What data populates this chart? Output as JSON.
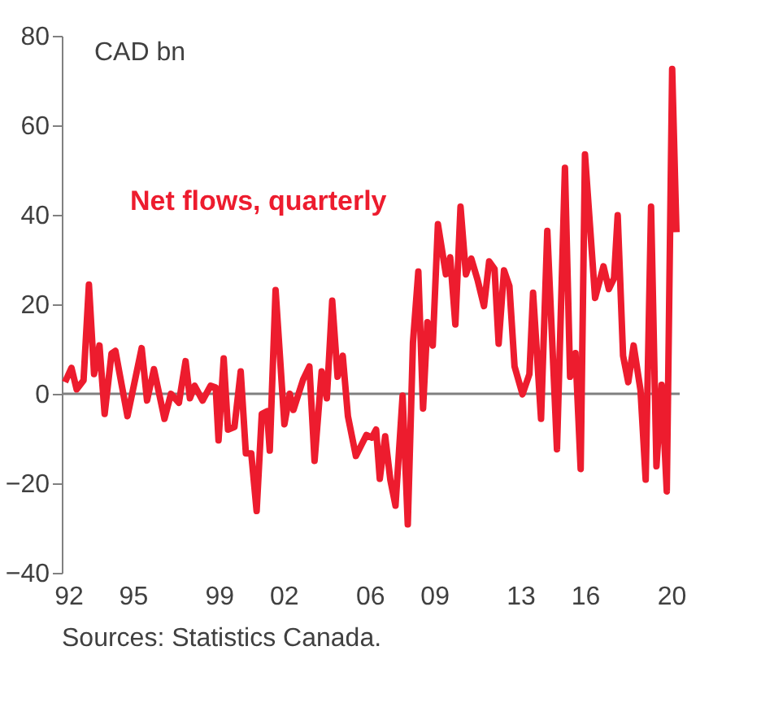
{
  "chart_data": {
    "type": "line",
    "ylabel": "CAD bn",
    "annotations": [
      "Sources: Statistics Canada."
    ],
    "x": [
      1991.85,
      1992.15,
      1992.39,
      1992.71,
      1992.96,
      1993.2,
      1993.45,
      1993.69,
      1994.01,
      1994.19,
      1994.75,
      1995.41,
      1995.66,
      1995.98,
      1996.47,
      1996.77,
      1997.14,
      1997.45,
      1997.65,
      1997.87,
      1998.24,
      1998.61,
      1998.85,
      1998.98,
      1999.22,
      1999.42,
      1999.72,
      2000.01,
      2000.25,
      2000.5,
      2000.75,
      2000.99,
      2001.23,
      2001.36,
      2001.63,
      2002.04,
      2002.29,
      2002.46,
      2002.91,
      2003.2,
      2003.44,
      2003.77,
      2004.01,
      2004.26,
      2004.51,
      2004.75,
      2004.99,
      2005.36,
      2005.61,
      2005.85,
      2006.1,
      2006.3,
      2006.47,
      2006.72,
      2006.96,
      2007.2,
      2007.53,
      2007.77,
      2008.01,
      2008.26,
      2008.48,
      2008.68,
      2008.93,
      2009.17,
      2009.54,
      2009.74,
      2009.98,
      2010.22,
      2010.47,
      2010.72,
      2011.01,
      2011.31,
      2011.55,
      2011.8,
      2011.99,
      2012.24,
      2012.49,
      2012.73,
      2013.1,
      2013.42,
      2013.59,
      2013.96,
      2014.25,
      2014.7,
      2015.07,
      2015.31,
      2015.56,
      2015.8,
      2016.0,
      2016.47,
      2016.86,
      2017.11,
      2017.35,
      2017.52,
      2017.77,
      2018.01,
      2018.26,
      2018.58,
      2018.82,
      2019.07,
      2019.32,
      2019.56,
      2019.8,
      2020.05,
      2020.25
    ],
    "series": [
      {
        "name": "Net flows, quarterly",
        "color": "#ed1c2e",
        "values": [
          2.6,
          5.8,
          1,
          3,
          24.4,
          4.4,
          10.8,
          -4.5,
          9,
          9.6,
          -5,
          10.2,
          -1.5,
          5.5,
          -5.6,
          0,
          -2,
          7.3,
          -1,
          1.8,
          -1.5,
          1.8,
          1.4,
          -10.4,
          7.9,
          -8,
          -7.4,
          5,
          -13.3,
          -13.3,
          -26.2,
          -4.5,
          -3.9,
          -12.7,
          23.2,
          -6.8,
          0,
          -3.6,
          3.2,
          6.1,
          -15,
          5,
          -1,
          20.8,
          3.8,
          8.5,
          -5,
          -13.9,
          -11.5,
          -9.2,
          -9.8,
          -8,
          -19,
          -9.5,
          -19.2,
          -25,
          -0.4,
          -29.2,
          11.4,
          27.3,
          -3.3,
          16,
          10.8,
          37.9,
          26.7,
          30.5,
          15.5,
          41.8,
          26.7,
          30.2,
          25.5,
          19.6,
          29.6,
          27.9,
          11.2,
          27.6,
          24.1,
          6.1,
          -0.1,
          4.4,
          22.6,
          -5.6,
          36.4,
          -12.4,
          50.5,
          3.8,
          9.1,
          -16.8,
          53.5,
          21.4,
          28.5,
          23.4,
          25.8,
          39.9,
          8.5,
          2.6,
          10.8,
          0.8,
          -19.2,
          41.8,
          -16.2,
          2,
          -21.8,
          72.6,
          36.1
        ]
      }
    ],
    "xlim": [
      1991.7,
      2020.4
    ],
    "xticks": [
      {
        "value": 1992,
        "label": "92"
      },
      {
        "value": 1995,
        "label": "95"
      },
      {
        "value": 1999,
        "label": "99"
      },
      {
        "value": 2002,
        "label": "02"
      },
      {
        "value": 2006,
        "label": "06"
      },
      {
        "value": 2009,
        "label": "09"
      },
      {
        "value": 2013,
        "label": "13"
      },
      {
        "value": 2016,
        "label": "16"
      },
      {
        "value": 2020,
        "label": "20"
      }
    ],
    "ylim": [
      -40,
      80
    ],
    "yticks": [
      -40,
      -20,
      0,
      20,
      40,
      60,
      80
    ],
    "ref_lines": [
      {
        "axis": "y",
        "value": 0,
        "color": "#808080"
      }
    ],
    "grid": false,
    "marker": "none",
    "line_style": "solid"
  }
}
